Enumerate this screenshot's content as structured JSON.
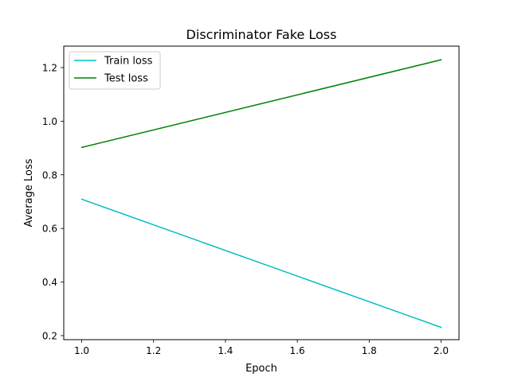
{
  "chart_data": {
    "type": "line",
    "title": "Discriminator Fake Loss",
    "xlabel": "Epoch",
    "ylabel": "Average Loss",
    "xlim": [
      0.95,
      2.05
    ],
    "ylim": [
      0.185,
      1.28
    ],
    "xticks": [
      1.0,
      1.2,
      1.4,
      1.6,
      1.8,
      2.0
    ],
    "xtick_labels": [
      "1.0",
      "1.2",
      "1.4",
      "1.6",
      "1.8",
      "2.0"
    ],
    "yticks": [
      0.2,
      0.4,
      0.6,
      0.8,
      1.0,
      1.2
    ],
    "ytick_labels": [
      "0.2",
      "0.4",
      "0.6",
      "0.8",
      "1.0",
      "1.2"
    ],
    "grid": false,
    "legend_position": "top-left",
    "series": [
      {
        "name": "Train loss",
        "color": "#00bfbf",
        "x": [
          1.0,
          2.0
        ],
        "y": [
          0.709,
          0.231
        ]
      },
      {
        "name": "Test loss",
        "color": "#008000",
        "x": [
          1.0,
          2.0
        ],
        "y": [
          0.902,
          1.229
        ]
      }
    ]
  }
}
